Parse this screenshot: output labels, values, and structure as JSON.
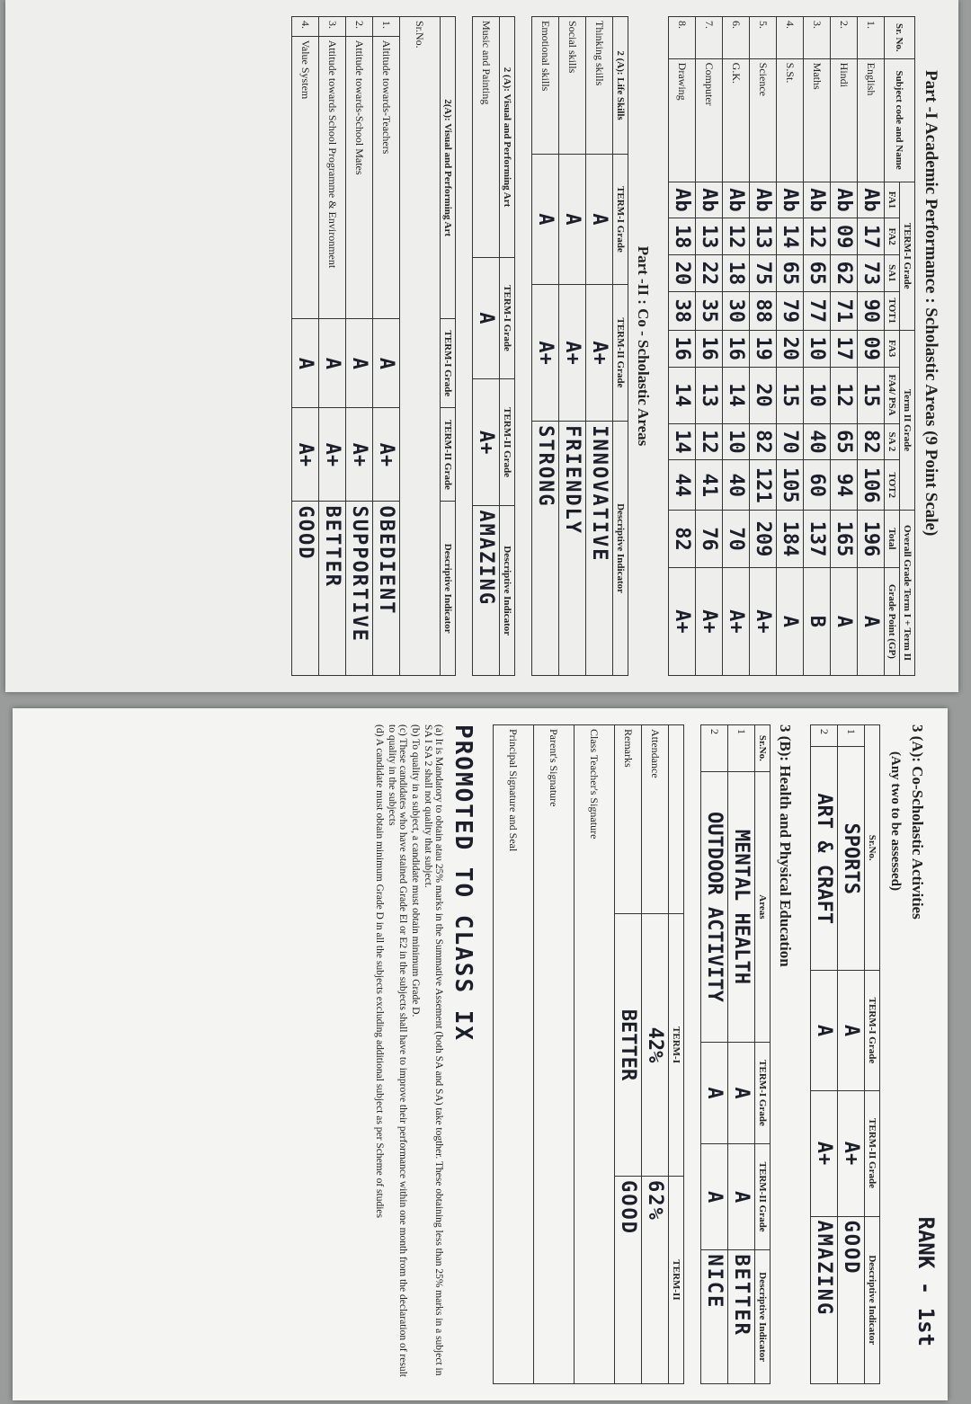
{
  "part1": {
    "title": "Part -I Academic Performance : Scholastic Areas (9 Point Scale)",
    "group_headers": [
      "Sr. No.",
      "Subject code and Name",
      "TERM-I Grade",
      "Term II Grade",
      "Overall Grade Term I + Term II"
    ],
    "sub_headers": [
      "FA1",
      "FA2",
      "SA1",
      "TOT1",
      "FA3",
      "FA4/ PSA",
      "SA 2",
      "TOT2",
      "Total",
      "Grade Point (GP)"
    ],
    "rows": [
      [
        "1.",
        "English",
        "Ab",
        "17",
        "73",
        "90",
        "09",
        "15",
        "82",
        "106",
        "196",
        "A"
      ],
      [
        "2.",
        "Hindi",
        "Ab",
        "09",
        "62",
        "71",
        "17",
        "12",
        "65",
        "94",
        "165",
        "A"
      ],
      [
        "3.",
        "Maths",
        "Ab",
        "12",
        "65",
        "77",
        "10",
        "10",
        "40",
        "60",
        "137",
        "B"
      ],
      [
        "4.",
        "S.St.",
        "Ab",
        "14",
        "65",
        "79",
        "20",
        "15",
        "70",
        "105",
        "184",
        "A"
      ],
      [
        "5.",
        "Science",
        "Ab",
        "13",
        "75",
        "88",
        "19",
        "20",
        "82",
        "121",
        "209",
        "A+"
      ],
      [
        "6.",
        "G.K.",
        "Ab",
        "12",
        "18",
        "30",
        "16",
        "14",
        "10",
        "40",
        "70",
        "A+"
      ],
      [
        "7.",
        "Computer",
        "Ab",
        "13",
        "22",
        "35",
        "16",
        "13",
        "12",
        "41",
        "76",
        "A+"
      ],
      [
        "8.",
        "Drawing",
        "Ab",
        "18",
        "20",
        "38",
        "16",
        "14",
        "14",
        "44",
        "82",
        "A+"
      ]
    ]
  },
  "part2": {
    "title": "Part -II : Co - Scholastic Areas",
    "life_skills": {
      "headers": [
        "2 (A): Life Skills",
        "TERM-I Grade",
        "TERM-II Grade",
        "Descriptive Indicator"
      ],
      "rows": [
        [
          "Thinking skills",
          "A",
          "A+",
          "INNOVATIVE"
        ],
        [
          "Social skills",
          "A",
          "A+",
          "FRIENDLY"
        ],
        [
          "Emotional skills",
          "A",
          "A+",
          "STRONG"
        ]
      ]
    },
    "art": {
      "headers": [
        "2 (A): Visual and Performing Art",
        "TERM-I Grade",
        "TERM-II Grade",
        "Descriptive Indicator"
      ],
      "rows": [
        [
          "Music and Painting",
          "A",
          "A+",
          "AMAZING"
        ]
      ]
    },
    "attitudes": {
      "headers": [
        "2(A): Visual and Performing Art",
        "TERM-I Grade",
        "TERM-II Grade",
        "Descriptive Indicator"
      ],
      "rows": [
        [
          "Sr.No."
        ],
        [
          "1.",
          "Altitude towards-Teachers",
          "A",
          "A+",
          "OBEDIENT"
        ],
        [
          "2.",
          "Attitude towards-School Mates",
          "A",
          "A+",
          "SUPPORTIVE"
        ],
        [
          "3.",
          "Attitude towards School Programme & Environment",
          "A",
          "A+",
          "BETTER"
        ],
        [
          "4.",
          "Value System",
          "A",
          "A+",
          "GOOD"
        ]
      ]
    }
  },
  "activities": {
    "title": "3 (A): Co-Scholastic Activities",
    "subtitle": "(Any two to be assessed)",
    "rank": "RANK - 1st",
    "headers": [
      "Sr.No.",
      "TERM-I Grade",
      "TERM-II Grade",
      "Descriptive Indicator"
    ],
    "rows": [
      [
        "1",
        "SPORTS",
        "A",
        "A+",
        "GOOD"
      ],
      [
        "2",
        "ART & CRAFT",
        "A",
        "A+",
        "AMAZING"
      ]
    ]
  },
  "health": {
    "title": "3 (B): Health and Physical Education",
    "headers": [
      "Sr.No.",
      "Areas",
      "TERM-I Grade",
      "TERM-II Grade",
      "Descriptive Indicator"
    ],
    "rows": [
      [
        "1",
        "MENTAL HEALTH",
        "A",
        "A",
        "BETTER"
      ],
      [
        "2",
        "OUTDOOR ACTIVITY",
        "A",
        "A",
        "NICE"
      ]
    ]
  },
  "remarks": {
    "headers": [
      "TERM-I",
      "TERM-II"
    ],
    "rows": [
      [
        "Attendance",
        "42%",
        "62%"
      ],
      [
        "Remarks",
        "BETTER",
        "GOOD"
      ],
      [
        "Class Teacher's Signature"
      ],
      [
        "Parent's Signature"
      ],
      [
        "Principal Signature and Seal"
      ]
    ]
  },
  "promoted": "PROMOTED TO CLASS IX",
  "notes": [
    "(a) It is Mandatory to obtain atau 25% marks in the Summative Assement (both SA and SA) take togther. These obtaining less than 25% marks in a subject in SA I SA 2 shall not quality that subject.",
    "(b) To quality in a subject, a candidate must obtain minimum Grade D.",
    "(c) These candidates who have stained Grade El or E2 in the subjects shall have to improve their performance within one month from the declaration of result to quality in the subjects",
    "(d) A candidate must obtain minimum Grade D in all the subjects excluding additional subject as per Scheme of studies"
  ]
}
